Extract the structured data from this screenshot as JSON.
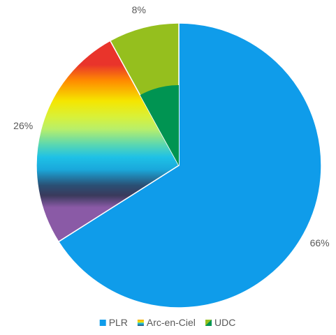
{
  "chart_data": {
    "type": "pie",
    "title": "",
    "slices": [
      {
        "label": "PLR",
        "value": 66,
        "display": "66%",
        "color": "#0f9cea"
      },
      {
        "label": "Arc-en-Ciel",
        "value": 26,
        "display": "26%",
        "color": "rainbow"
      },
      {
        "label": "UDC",
        "value": 8,
        "display": "8%",
        "color": "#95bf1e"
      }
    ],
    "legend_position": "bottom",
    "udc_colors": {
      "outer": "#95bf1e",
      "inner": "#009452"
    },
    "rainbow_stops": [
      "#e9342b",
      "#ff8c00",
      "#f5e600",
      "#d8f13a",
      "#b8ef6a",
      "#57d6b4",
      "#1ec1e6",
      "#1aa9dc",
      "#2a4f74",
      "#3a3a5c",
      "#8a5aa6"
    ]
  }
}
